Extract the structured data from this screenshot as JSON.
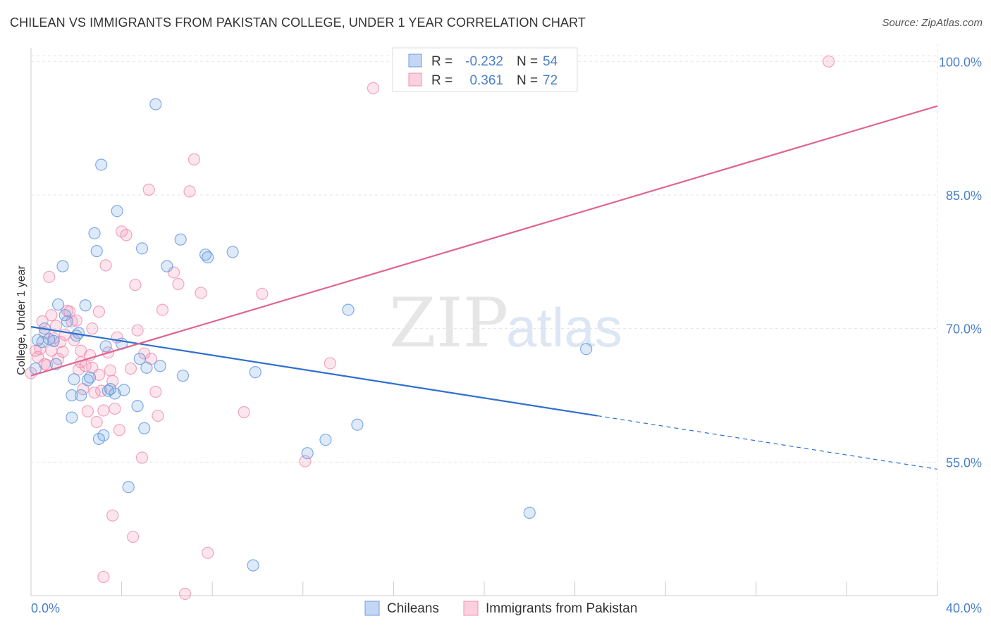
{
  "header": {
    "title": "CHILEAN VS IMMIGRANTS FROM PAKISTAN COLLEGE, UNDER 1 YEAR CORRELATION CHART",
    "source": "Source: ZipAtlas.com"
  },
  "watermark": {
    "zip": "ZIP",
    "atlas": "atlas"
  },
  "chart_data": {
    "type": "scatter",
    "ylabel": "College, Under 1 year",
    "xlim": [
      0,
      40
    ],
    "ylim": [
      40,
      102
    ],
    "x_ticks": [
      0,
      40
    ],
    "x_tick_labels": [
      "0.0%",
      "40.0%"
    ],
    "y_ticks": [
      55,
      70,
      85,
      100
    ],
    "y_tick_labels": [
      "55.0%",
      "70.0%",
      "85.0%",
      "100.0%"
    ],
    "grid": true,
    "legend_position": "top-center",
    "colors": {
      "blue": "#6a9ee0",
      "blue_line": "#2f6fcf",
      "pink": "#f08fb0",
      "pink_line": "#e0648f",
      "label_blue": "#4a7fc9"
    },
    "stats": [
      {
        "r_label": "R =",
        "r_value": "-0.232",
        "n_label": "N =",
        "n_value": "54"
      },
      {
        "r_label": "R =",
        "r_value": "0.361",
        "n_label": "N =",
        "n_value": "72"
      }
    ],
    "series": [
      {
        "name": "Chileans",
        "color": "#6a9ee0",
        "trend": {
          "x0": 0,
          "y0": 70.2,
          "x1": 25,
          "y1": 60.2,
          "dash_to_x": 40,
          "dash_to_y": 54.2
        },
        "points": [
          [
            0.3,
            68.7
          ],
          [
            0.5,
            68.5
          ],
          [
            0.6,
            70.0
          ],
          [
            0.8,
            68.8
          ],
          [
            1.0,
            68.6
          ],
          [
            1.2,
            72.7
          ],
          [
            1.4,
            77.0
          ],
          [
            1.5,
            71.5
          ],
          [
            1.6,
            70.8
          ],
          [
            1.8,
            62.5
          ],
          [
            1.8,
            60.0
          ],
          [
            1.9,
            64.3
          ],
          [
            2.1,
            69.5
          ],
          [
            2.2,
            62.5
          ],
          [
            2.4,
            72.6
          ],
          [
            2.5,
            64.2
          ],
          [
            2.6,
            64.5
          ],
          [
            2.9,
            78.7
          ],
          [
            2.8,
            80.7
          ],
          [
            3.1,
            88.4
          ],
          [
            3.0,
            57.6
          ],
          [
            3.2,
            58.0
          ],
          [
            3.4,
            63.0
          ],
          [
            3.5,
            63.2
          ],
          [
            3.7,
            62.7
          ],
          [
            3.8,
            83.2
          ],
          [
            4.0,
            68.3
          ],
          [
            4.1,
            63.1
          ],
          [
            4.3,
            52.2
          ],
          [
            4.7,
            61.3
          ],
          [
            4.8,
            66.6
          ],
          [
            4.9,
            79.0
          ],
          [
            5.0,
            58.8
          ],
          [
            5.1,
            65.6
          ],
          [
            5.7,
            65.8
          ],
          [
            6.0,
            77.0
          ],
          [
            6.6,
            80.0
          ],
          [
            6.7,
            64.7
          ],
          [
            7.7,
            78.3
          ],
          [
            7.8,
            78.0
          ],
          [
            8.9,
            78.6
          ],
          [
            9.8,
            43.4
          ],
          [
            9.9,
            65.1
          ],
          [
            12.2,
            56.0
          ],
          [
            13.0,
            57.5
          ],
          [
            14.0,
            72.1
          ],
          [
            14.4,
            59.2
          ],
          [
            22.0,
            49.3
          ],
          [
            24.5,
            67.7
          ],
          [
            5.5,
            95.2
          ],
          [
            0.2,
            65.5
          ],
          [
            2.0,
            69.2
          ],
          [
            3.3,
            68.0
          ],
          [
            1.1,
            66.0
          ]
        ]
      },
      {
        "name": "Immigrants from Pakistan",
        "color": "#f08fb0",
        "trend": {
          "x0": 0,
          "y0": 64.7,
          "x1": 40,
          "y1": 95.0
        },
        "points": [
          [
            0.0,
            65.0
          ],
          [
            0.2,
            67.5
          ],
          [
            0.3,
            66.8
          ],
          [
            0.4,
            67.7
          ],
          [
            0.5,
            70.8
          ],
          [
            0.6,
            69.5
          ],
          [
            0.7,
            65.9
          ],
          [
            0.8,
            75.8
          ],
          [
            0.9,
            71.5
          ],
          [
            1.1,
            70.3
          ],
          [
            1.2,
            66.6
          ],
          [
            1.3,
            68.5
          ],
          [
            1.4,
            67.4
          ],
          [
            1.5,
            69.3
          ],
          [
            1.6,
            72.0
          ],
          [
            1.7,
            71.9
          ],
          [
            1.8,
            70.8
          ],
          [
            2.0,
            70.9
          ],
          [
            2.1,
            65.4
          ],
          [
            2.2,
            67.5
          ],
          [
            2.3,
            63.2
          ],
          [
            2.4,
            65.8
          ],
          [
            2.5,
            60.7
          ],
          [
            2.6,
            67.0
          ],
          [
            2.7,
            65.6
          ],
          [
            2.8,
            62.8
          ],
          [
            2.9,
            59.5
          ],
          [
            3.0,
            71.9
          ],
          [
            3.1,
            63.0
          ],
          [
            3.2,
            60.8
          ],
          [
            3.3,
            77.1
          ],
          [
            3.4,
            67.3
          ],
          [
            3.5,
            65.3
          ],
          [
            3.6,
            64.1
          ],
          [
            3.7,
            61.0
          ],
          [
            3.8,
            69.0
          ],
          [
            3.9,
            58.6
          ],
          [
            4.0,
            80.9
          ],
          [
            4.2,
            80.5
          ],
          [
            4.4,
            65.5
          ],
          [
            4.6,
            74.9
          ],
          [
            4.9,
            55.5
          ],
          [
            5.0,
            67.2
          ],
          [
            5.2,
            85.6
          ],
          [
            5.3,
            66.6
          ],
          [
            5.5,
            62.9
          ],
          [
            5.6,
            60.2
          ],
          [
            5.8,
            72.1
          ],
          [
            6.3,
            76.3
          ],
          [
            6.5,
            75.0
          ],
          [
            7.0,
            85.4
          ],
          [
            7.2,
            89.0
          ],
          [
            7.5,
            74.0
          ],
          [
            7.8,
            44.8
          ],
          [
            9.4,
            60.6
          ],
          [
            10.2,
            73.9
          ],
          [
            12.1,
            55.1
          ],
          [
            13.2,
            66.1
          ],
          [
            15.1,
            97.0
          ],
          [
            35.2,
            100.0
          ],
          [
            3.2,
            42.1
          ],
          [
            4.5,
            46.6
          ],
          [
            6.8,
            40.2
          ],
          [
            3.6,
            49.0
          ],
          [
            2.2,
            66.2
          ],
          [
            1.0,
            68.9
          ],
          [
            0.6,
            66.0
          ],
          [
            1.9,
            68.7
          ],
          [
            2.7,
            70.0
          ],
          [
            4.7,
            69.8
          ],
          [
            0.9,
            67.5
          ],
          [
            3.0,
            64.8
          ]
        ]
      }
    ],
    "legend": [
      "Chileans",
      "Immigrants from Pakistan"
    ]
  }
}
